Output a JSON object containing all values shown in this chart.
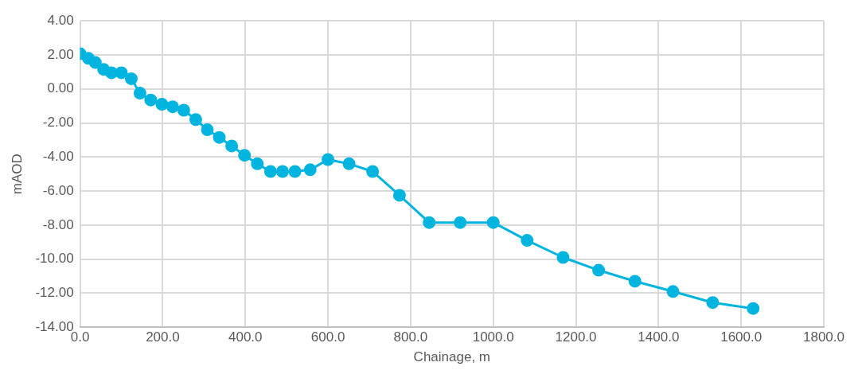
{
  "chart_data": {
    "type": "line",
    "xlabel": "Chainage, m",
    "ylabel": "mAOD",
    "xlim": [
      0,
      1800
    ],
    "xticks": [
      {
        "value": 0,
        "label": "0.0"
      },
      {
        "value": 200,
        "label": "200.0"
      },
      {
        "value": 400,
        "label": "400.0"
      },
      {
        "value": 600,
        "label": "600.0"
      },
      {
        "value": 800,
        "label": "800.0"
      },
      {
        "value": 1000,
        "label": "1000.0"
      },
      {
        "value": 1200,
        "label": "1200.0"
      },
      {
        "value": 1400,
        "label": "1400.0"
      },
      {
        "value": 1600,
        "label": "1600.0"
      },
      {
        "value": 1800,
        "label": "1800.0"
      }
    ],
    "ylim": [
      -14,
      4
    ],
    "yticks": [
      {
        "value": -14,
        "label": "-14.00"
      },
      {
        "value": -12,
        "label": "-12.00"
      },
      {
        "value": -10,
        "label": "-10.00"
      },
      {
        "value": -8,
        "label": "-8.00"
      },
      {
        "value": -6,
        "label": "-6.00"
      },
      {
        "value": -4,
        "label": "-4.00"
      },
      {
        "value": -2,
        "label": "-2.00"
      },
      {
        "value": 0,
        "label": "0.00"
      },
      {
        "value": 2,
        "label": "2.00"
      },
      {
        "value": 4,
        "label": "4.00"
      }
    ],
    "grid": true,
    "marker": "circle",
    "line_style": "solid",
    "series": [
      {
        "color": "#00b4e0",
        "x": [
          0,
          20,
          37,
          57,
          76,
          100,
          124,
          145,
          171,
          198,
          224,
          251,
          280,
          308,
          337,
          367,
          398,
          429,
          461,
          490,
          520,
          557,
          600,
          651,
          708,
          773,
          845,
          920,
          1000,
          1082,
          1169,
          1255,
          1343,
          1435,
          1531,
          1629
        ],
        "values": [
          2.07,
          1.8,
          1.55,
          1.15,
          0.95,
          0.95,
          0.6,
          -0.25,
          -0.65,
          -0.9,
          -1.05,
          -1.25,
          -1.8,
          -2.4,
          -2.85,
          -3.35,
          -3.9,
          -4.4,
          -4.85,
          -4.85,
          -4.85,
          -4.75,
          -4.15,
          -4.4,
          -4.85,
          -6.25,
          -7.85,
          -7.85,
          -7.85,
          -8.9,
          -9.9,
          -10.65,
          -11.3,
          -11.9,
          -12.55,
          -12.9
        ]
      }
    ]
  }
}
